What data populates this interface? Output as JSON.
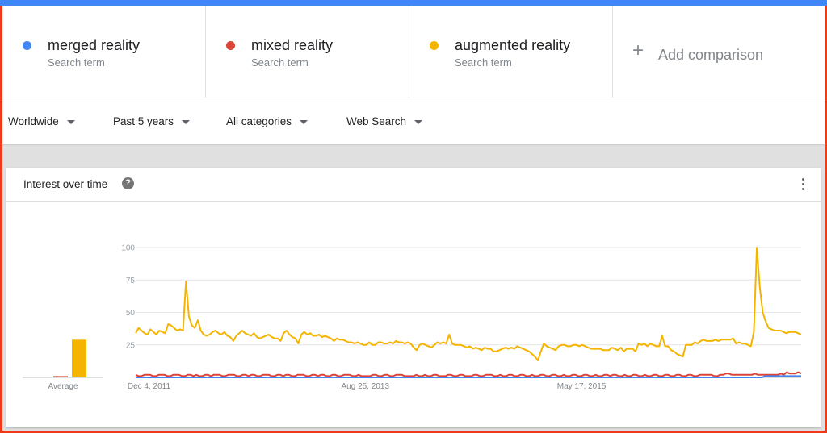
{
  "terms": [
    {
      "name": "merged reality",
      "sub": "Search term",
      "color": "#4285f4"
    },
    {
      "name": "mixed reality",
      "sub": "Search term",
      "color": "#db4437"
    },
    {
      "name": "augmented reality",
      "sub": "Search term",
      "color": "#f4b400"
    }
  ],
  "add_comparison": "Add comparison",
  "filters": {
    "location": "Worldwide",
    "time": "Past 5 years",
    "category": "All categories",
    "property": "Web Search"
  },
  "card": {
    "title": "Interest over time",
    "help_glyph": "?"
  },
  "chart_data": {
    "type": "line",
    "y_ticks": [
      "100",
      "75",
      "50",
      "25"
    ],
    "ylim": [
      0,
      100
    ],
    "grid": true,
    "x_tick_labels": [
      "Dec 4, 2011",
      "Aug 25, 2013",
      "May 17, 2015"
    ],
    "average_label": "Average",
    "average_values": [
      {
        "name": "merged reality",
        "value": 0
      },
      {
        "name": "mixed reality",
        "value": 1
      },
      {
        "name": "augmented reality",
        "value": 29
      }
    ],
    "series": [
      {
        "name": "augmented reality",
        "color": "#f4b400",
        "values": [
          34,
          38,
          36,
          34,
          33,
          37,
          35,
          33,
          36,
          35,
          34,
          41,
          40,
          38,
          36,
          37,
          36,
          74,
          47,
          40,
          38,
          44,
          36,
          33,
          32,
          33,
          35,
          36,
          34,
          33,
          35,
          32,
          31,
          28,
          32,
          34,
          36,
          34,
          33,
          32,
          34,
          31,
          30,
          31,
          32,
          33,
          31,
          30,
          30,
          28,
          34,
          36,
          33,
          31,
          30,
          26,
          33,
          35,
          33,
          34,
          32,
          32,
          33,
          31,
          32,
          31,
          30,
          28,
          30,
          29,
          29,
          28,
          27,
          27,
          26,
          27,
          26,
          25,
          25,
          27,
          25,
          25,
          27,
          27,
          26,
          26,
          27,
          26,
          28,
          27,
          27,
          26,
          27,
          26,
          23,
          21,
          25,
          26,
          25,
          24,
          23,
          25,
          27,
          26,
          27,
          26,
          33,
          26,
          25,
          25,
          25,
          24,
          23,
          24,
          22,
          23,
          22,
          21,
          23,
          22,
          22,
          20,
          20,
          21,
          22,
          23,
          22,
          23,
          22,
          24,
          23,
          22,
          21,
          20,
          18,
          16,
          13,
          20,
          26,
          24,
          23,
          22,
          21,
          24,
          25,
          25,
          24,
          24,
          25,
          25,
          24,
          25,
          24,
          23,
          22,
          22,
          22,
          22,
          21,
          21,
          21,
          23,
          22,
          21,
          23,
          20,
          22,
          22,
          22,
          20,
          26,
          25,
          26,
          24,
          26,
          25,
          24,
          24,
          32,
          24,
          24,
          21,
          20,
          18,
          17,
          16,
          25,
          25,
          25,
          27,
          26,
          28,
          29,
          28,
          28,
          28,
          29,
          28,
          29,
          29,
          29,
          29,
          30,
          26,
          27,
          26,
          26,
          25,
          24,
          35,
          100,
          70,
          50,
          43,
          38,
          37,
          36,
          36,
          36,
          35,
          34,
          35,
          35,
          35,
          34,
          33
        ]
      },
      {
        "name": "mixed reality",
        "color": "#db4437",
        "values": [
          2,
          1,
          1,
          2,
          2,
          2,
          1,
          1,
          2,
          2,
          2,
          1,
          1,
          2,
          2,
          2,
          1,
          1,
          2,
          2,
          1,
          2,
          1,
          1,
          2,
          2,
          1,
          2,
          2,
          2,
          1,
          1,
          2,
          2,
          2,
          1,
          1,
          2,
          2,
          1,
          2,
          2,
          1,
          1,
          2,
          2,
          2,
          1,
          1,
          2,
          2,
          1,
          2,
          2,
          1,
          1,
          2,
          2,
          2,
          1,
          1,
          2,
          2,
          1,
          2,
          2,
          1,
          1,
          2,
          2,
          1,
          1,
          2,
          2,
          2,
          1,
          1,
          2,
          1,
          1,
          1,
          1,
          2,
          2,
          1,
          1,
          2,
          2,
          1,
          1,
          2,
          2,
          2,
          1,
          1,
          1,
          1,
          2,
          1,
          1,
          2,
          1,
          1,
          2,
          2,
          1,
          1,
          1,
          2,
          2,
          1,
          1,
          2,
          2,
          1,
          1,
          1,
          2,
          2,
          1,
          1,
          2,
          2,
          2,
          1,
          1,
          2,
          1,
          1,
          2,
          2,
          1,
          1,
          2,
          2,
          1,
          1,
          2,
          1,
          1,
          2,
          2,
          1,
          1,
          2,
          2,
          1,
          1,
          2,
          1,
          1,
          2,
          2,
          1,
          1,
          2,
          2,
          1,
          1,
          2,
          1,
          1,
          2,
          2,
          1,
          2,
          2,
          1,
          1,
          2,
          1,
          1,
          2,
          2,
          1,
          1,
          2,
          1,
          1,
          2,
          2,
          1,
          1,
          2,
          2,
          1,
          1,
          2,
          2,
          1,
          1,
          2,
          2,
          1,
          1,
          2,
          2,
          2,
          2,
          2,
          1,
          1,
          2,
          2,
          3,
          3,
          2,
          2,
          2,
          2,
          2,
          2,
          2,
          2,
          3,
          2,
          2,
          2,
          2,
          2,
          2,
          2,
          2,
          3,
          2,
          4,
          3,
          3,
          3,
          4,
          3
        ]
      },
      {
        "name": "merged reality",
        "color": "#4285f4",
        "values": [
          0,
          0,
          0,
          0,
          0,
          0,
          0,
          0,
          0,
          0,
          0,
          0,
          0,
          0,
          0,
          0,
          0,
          0,
          0,
          0,
          0,
          0,
          0,
          0,
          0,
          0,
          0,
          0,
          0,
          0,
          0,
          0,
          0,
          0,
          0,
          0,
          0,
          0,
          0,
          0,
          0,
          0,
          0,
          0,
          0,
          0,
          0,
          0,
          0,
          0,
          0,
          0,
          0,
          0,
          0,
          0,
          0,
          0,
          0,
          0,
          0,
          0,
          0,
          0,
          0,
          0,
          0,
          0,
          0,
          0,
          0,
          0,
          0,
          0,
          0,
          0,
          0,
          0,
          0,
          0,
          0,
          0,
          0,
          0,
          0,
          0,
          0,
          0,
          0,
          0,
          0,
          0,
          0,
          0,
          0,
          0,
          0,
          0,
          0,
          0,
          0,
          0,
          0,
          0,
          0,
          0,
          0,
          0,
          0,
          0,
          0,
          0,
          0,
          0,
          0,
          0,
          0,
          0,
          0,
          0,
          0,
          0,
          0,
          0,
          0,
          0,
          0,
          0,
          0,
          0,
          0,
          0,
          0,
          0,
          0,
          0,
          0,
          0,
          0,
          0,
          0,
          0,
          0,
          0,
          0,
          0,
          0,
          0,
          0,
          0,
          0,
          0,
          0,
          0,
          0,
          0,
          0,
          0,
          0,
          0,
          0,
          0,
          0,
          0,
          0,
          0,
          0,
          0,
          0,
          0,
          0,
          0,
          0,
          0,
          0,
          0,
          0,
          0,
          0,
          0,
          0,
          0,
          0,
          0,
          0,
          0,
          0,
          0,
          0,
          0,
          0,
          0,
          0,
          0,
          0,
          0,
          0,
          0,
          0,
          0,
          0,
          0,
          0,
          0,
          0,
          0,
          0,
          0,
          0,
          0,
          0,
          0,
          0,
          0,
          0,
          0,
          0,
          0,
          0,
          0,
          0,
          0,
          0,
          0,
          0,
          0,
          1,
          1,
          1,
          1,
          1,
          1,
          1,
          1,
          1,
          1,
          1,
          1,
          1,
          1
        ]
      }
    ]
  }
}
